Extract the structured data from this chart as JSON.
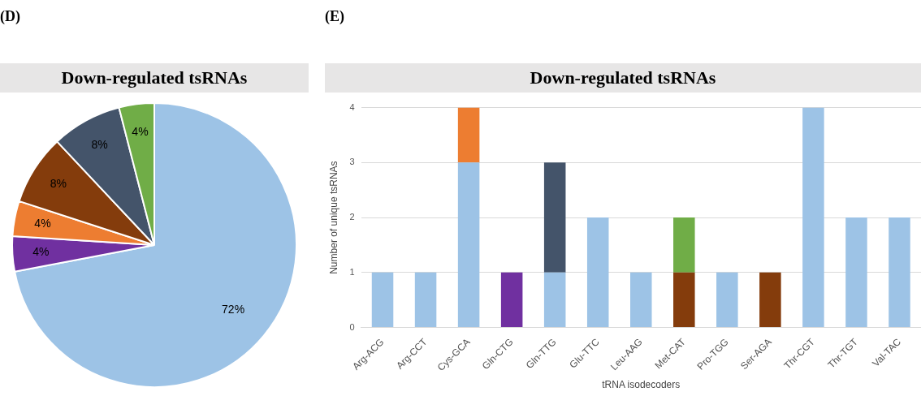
{
  "chart_data": [
    {
      "type": "pie",
      "title": "Down-regulated tsRNAs",
      "annotations": [
        "(D)"
      ],
      "categories": [
        null,
        null,
        null,
        null,
        null,
        null
      ],
      "values": [
        72,
        4,
        4,
        8,
        8,
        4
      ],
      "value_labels": [
        "72%",
        "4%",
        "4%",
        "8%",
        "8%",
        "4%"
      ],
      "colors": [
        "#9dc3e6",
        "#7030a0",
        "#ed7d31",
        "#843c0c",
        "#44546a",
        "#70ad47"
      ],
      "legend": false
    },
    {
      "type": "bar",
      "title": "Down-regulated tsRNAs",
      "annotations": [
        "(E)"
      ],
      "xlabel": "tRNA isodecoders",
      "ylabel": "Number of unique tsRNAs",
      "categories": [
        "Arg-ACG",
        "Arg-CCT",
        "Cys-GCA",
        "Gln-CTG",
        "Gln-TTG",
        "Glu-TTC",
        "Leu-AAG",
        "Met-CAT",
        "Pro-TGG",
        "Ser-AGA",
        "Thr-CGT",
        "Thr-TGT",
        "Val-TAC"
      ],
      "stacked": true,
      "series": [
        {
          "color": "#9dc3e6",
          "values": [
            1,
            1,
            3,
            0,
            1,
            2,
            1,
            0,
            1,
            0,
            4,
            2,
            2
          ]
        },
        {
          "color": "#843c0c",
          "values": [
            0,
            0,
            0,
            0,
            0,
            0,
            0,
            1,
            0,
            1,
            0,
            0,
            0
          ]
        },
        {
          "color": "#ed7d31",
          "values": [
            0,
            0,
            1,
            0,
            0,
            0,
            0,
            0,
            0,
            0,
            0,
            0,
            0
          ]
        },
        {
          "color": "#7030a0",
          "values": [
            0,
            0,
            0,
            1,
            0,
            0,
            0,
            0,
            0,
            0,
            0,
            0,
            0
          ]
        },
        {
          "color": "#44546a",
          "values": [
            0,
            0,
            0,
            0,
            2,
            0,
            0,
            0,
            0,
            0,
            0,
            0,
            0
          ]
        },
        {
          "color": "#70ad47",
          "values": [
            0,
            0,
            0,
            0,
            0,
            0,
            0,
            1,
            0,
            0,
            0,
            0,
            0
          ]
        }
      ],
      "ylim": [
        0,
        4
      ],
      "yticks": [
        0,
        1,
        2,
        3,
        4
      ],
      "grid": "y",
      "legend": false
    }
  ]
}
